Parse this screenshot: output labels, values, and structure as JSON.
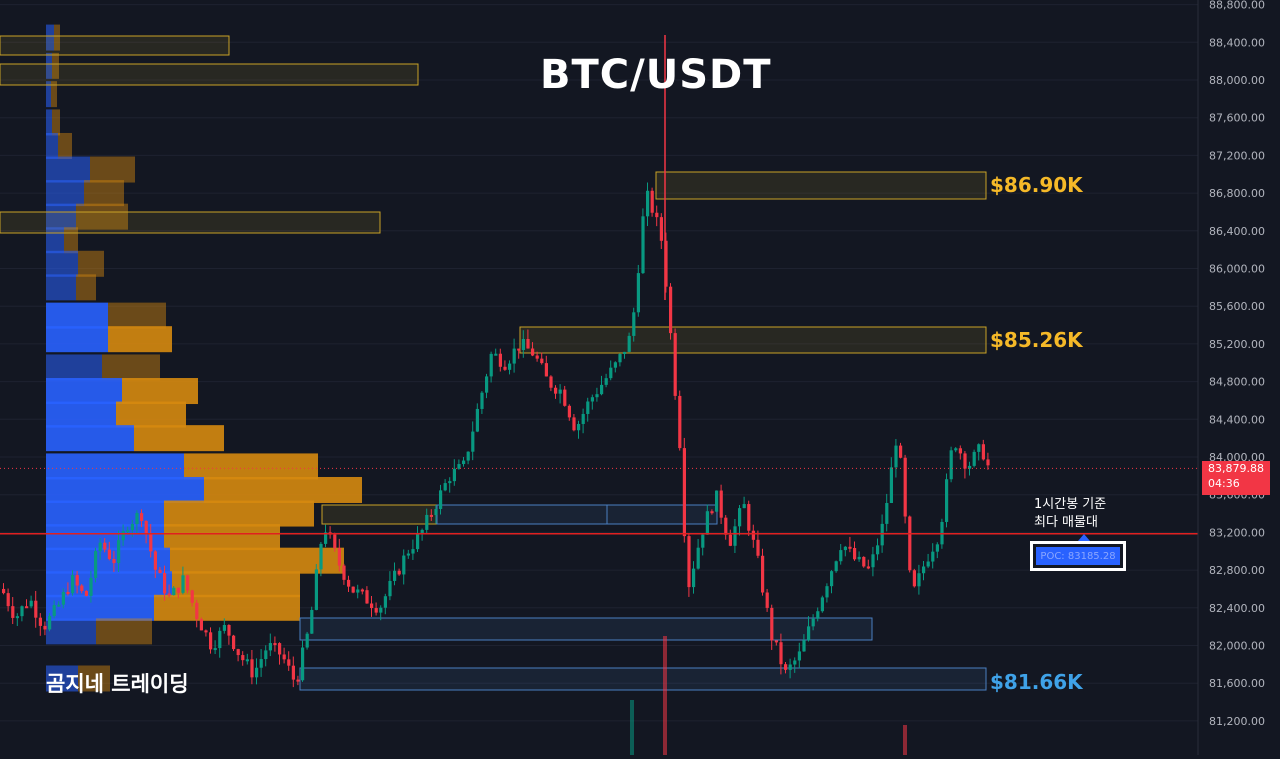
{
  "title": "BTC/USDT",
  "brand": "곰지네 트레이딩",
  "annotation": {
    "line1": "1시간봉 기준",
    "line2": "최다 매물대"
  },
  "poc_label": "POC: 83185.28",
  "levels": [
    {
      "label": "$86.90K",
      "price": 86900,
      "color": "#f5b928"
    },
    {
      "label": "$85.26K",
      "price": 85260,
      "color": "#f5b928"
    },
    {
      "label": "$81.66K",
      "price": 81660,
      "color": "#3fa2e8"
    }
  ],
  "current_price": {
    "value": "83,879.88",
    "countdown": "04:36"
  },
  "colors": {
    "up": "#089981",
    "down": "#f23645",
    "poc_line": "#e02020",
    "background": "#131722"
  },
  "chart_data": {
    "type": "candlestick",
    "title": "BTC/USDT",
    "y_ticks": [
      "88,800.00",
      "88,400.00",
      "88,000.00",
      "87,600.00",
      "87,200.00",
      "86,800.00",
      "86,400.00",
      "86,000.00",
      "85,600.00",
      "85,200.00",
      "84,800.00",
      "84,400.00",
      "84,000.00",
      "83,600.00",
      "83,200.00",
      "82,800.00",
      "82,400.00",
      "82,000.00",
      "81,600.00",
      "81,200.00"
    ],
    "ylim": [
      81000,
      88900
    ],
    "poc": 83185.28,
    "last_price": 83879.88,
    "close_path": [
      [
        0,
        82600
      ],
      [
        14,
        82300
      ],
      [
        28,
        82500
      ],
      [
        42,
        82200
      ],
      [
        56,
        82400
      ],
      [
        70,
        82700
      ],
      [
        84,
        82500
      ],
      [
        98,
        83100
      ],
      [
        112,
        82900
      ],
      [
        126,
        83300
      ],
      [
        140,
        83400
      ],
      [
        154,
        82800
      ],
      [
        168,
        82500
      ],
      [
        182,
        82700
      ],
      [
        196,
        82300
      ],
      [
        210,
        82000
      ],
      [
        224,
        82200
      ],
      [
        238,
        81900
      ],
      [
        252,
        81700
      ],
      [
        266,
        82000
      ],
      [
        280,
        81900
      ],
      [
        294,
        81600
      ],
      [
        308,
        82200
      ],
      [
        322,
        83300
      ],
      [
        336,
        82900
      ],
      [
        350,
        82600
      ],
      [
        364,
        82500
      ],
      [
        378,
        82400
      ],
      [
        392,
        82700
      ],
      [
        406,
        83000
      ],
      [
        420,
        83200
      ],
      [
        434,
        83500
      ],
      [
        448,
        83800
      ],
      [
        462,
        83900
      ],
      [
        476,
        84500
      ],
      [
        490,
        85100
      ],
      [
        504,
        85000
      ],
      [
        518,
        85200
      ],
      [
        532,
        85100
      ],
      [
        546,
        84800
      ],
      [
        560,
        84700
      ],
      [
        574,
        84300
      ],
      [
        588,
        84600
      ],
      [
        602,
        84800
      ],
      [
        616,
        85000
      ],
      [
        630,
        85300
      ],
      [
        644,
        86800
      ],
      [
        652,
        86600
      ],
      [
        660,
        86300
      ],
      [
        666,
        85700
      ],
      [
        672,
        84900
      ],
      [
        678,
        84200
      ],
      [
        686,
        82600
      ],
      [
        700,
        83200
      ],
      [
        714,
        83600
      ],
      [
        728,
        83100
      ],
      [
        742,
        83500
      ],
      [
        756,
        82900
      ],
      [
        770,
        82100
      ],
      [
        784,
        81700
      ],
      [
        798,
        81900
      ],
      [
        812,
        82300
      ],
      [
        826,
        82700
      ],
      [
        840,
        83100
      ],
      [
        854,
        82900
      ],
      [
        868,
        82800
      ],
      [
        882,
        83300
      ],
      [
        896,
        84300
      ],
      [
        910,
        82500
      ],
      [
        924,
        82900
      ],
      [
        938,
        83200
      ],
      [
        952,
        84200
      ],
      [
        966,
        83900
      ],
      [
        980,
        84100
      ],
      [
        987,
        83880
      ]
    ],
    "volume_profile": [
      {
        "price": 88450,
        "buy": 8,
        "sell": 6
      },
      {
        "price": 88150,
        "buy": 6,
        "sell": 7
      },
      {
        "price": 87850,
        "buy": 5,
        "sell": 6
      },
      {
        "price": 87550,
        "buy": 6,
        "sell": 8
      },
      {
        "price": 87300,
        "buy": 12,
        "sell": 14
      },
      {
        "price": 87050,
        "buy": 44,
        "sell": 45
      },
      {
        "price": 86800,
        "buy": 38,
        "sell": 40
      },
      {
        "price": 86550,
        "buy": 30,
        "sell": 52
      },
      {
        "price": 86300,
        "buy": 18,
        "sell": 14
      },
      {
        "price": 86050,
        "buy": 32,
        "sell": 26
      },
      {
        "price": 85800,
        "buy": 30,
        "sell": 20
      },
      {
        "price": 85500,
        "buy": 62,
        "sell": 58
      },
      {
        "price": 85250,
        "buy": 62,
        "sell": 64
      },
      {
        "price": 84950,
        "buy": 56,
        "sell": 58
      },
      {
        "price": 84700,
        "buy": 76,
        "sell": 76
      },
      {
        "price": 84450,
        "buy": 70,
        "sell": 70
      },
      {
        "price": 84200,
        "buy": 88,
        "sell": 90
      },
      {
        "price": 83900,
        "buy": 138,
        "sell": 134
      },
      {
        "price": 83650,
        "buy": 158,
        "sell": 158
      },
      {
        "price": 83400,
        "buy": 118,
        "sell": 150
      },
      {
        "price": 83150,
        "buy": 118,
        "sell": 116
      },
      {
        "price": 82900,
        "buy": 124,
        "sell": 174
      },
      {
        "price": 82650,
        "buy": 126,
        "sell": 128
      },
      {
        "price": 82400,
        "buy": 108,
        "sell": 146
      },
      {
        "price": 82150,
        "buy": 50,
        "sell": 56
      },
      {
        "price": 81650,
        "buy": 32,
        "sell": 32
      }
    ]
  }
}
